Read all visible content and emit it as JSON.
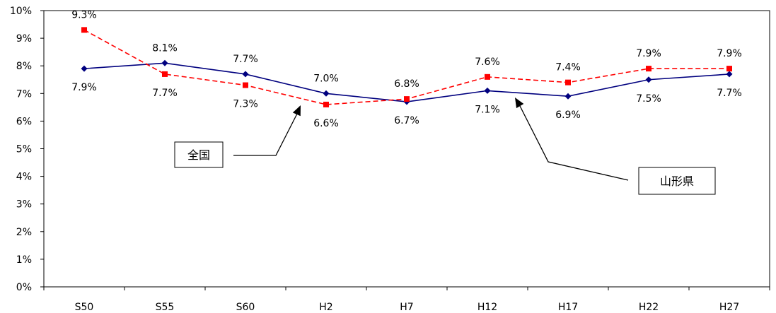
{
  "chart_data": {
    "type": "line",
    "categories": [
      "S50",
      "S55",
      "S60",
      "H2",
      "H7",
      "H12",
      "H17",
      "H22",
      "H27"
    ],
    "ylim": [
      0,
      10
    ],
    "yticks": [
      "0%",
      "1%",
      "2%",
      "3%",
      "4%",
      "5%",
      "6%",
      "7%",
      "8%",
      "9%",
      "10%"
    ],
    "grid": false,
    "series": [
      {
        "name": "山形県",
        "color": "#00007f",
        "line_style": "solid",
        "marker": "diamond",
        "values": [
          7.9,
          8.1,
          7.7,
          7.0,
          6.7,
          7.1,
          6.9,
          7.5,
          7.7
        ],
        "labels": [
          "7.9%",
          "8.1%",
          "7.7%",
          "7.0%",
          "6.7%",
          "7.1%",
          "6.9%",
          "7.5%",
          "7.7%"
        ]
      },
      {
        "name": "全国",
        "color": "#ff0000",
        "line_style": "dashed",
        "marker": "square",
        "values": [
          9.3,
          7.7,
          7.3,
          6.6,
          6.8,
          7.6,
          7.4,
          7.9,
          7.9
        ],
        "labels": [
          "9.3%",
          "7.7%",
          "7.3%",
          "6.6%",
          "6.8%",
          "7.6%",
          "7.4%",
          "7.9%",
          "7.9%"
        ]
      }
    ]
  }
}
